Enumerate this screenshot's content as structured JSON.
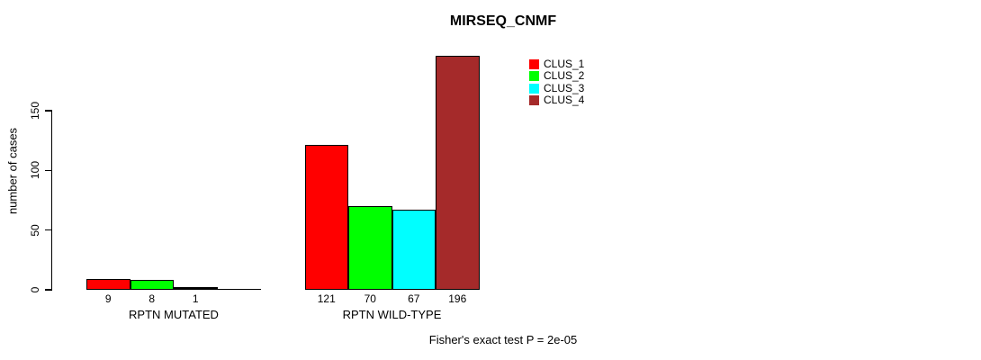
{
  "title": "MIRSEQ_CNMF",
  "chart_data": {
    "type": "bar",
    "title": "MIRSEQ_CNMF",
    "ylabel": "number of cases",
    "yticks": [
      0,
      50,
      100,
      150
    ],
    "ylim": [
      0,
      196
    ],
    "grid": false,
    "legend_position": "top-right",
    "categories": [
      "RPTN MUTATED",
      "RPTN WILD-TYPE"
    ],
    "series": [
      {
        "name": "CLUS_1",
        "color": "#ff0000",
        "values": [
          9,
          121
        ]
      },
      {
        "name": "CLUS_2",
        "color": "#00ff00",
        "values": [
          8,
          70
        ]
      },
      {
        "name": "CLUS_3",
        "color": "#00ffff",
        "values": [
          1,
          67
        ]
      },
      {
        "name": "CLUS_4",
        "color": "#a52a2a",
        "values": [
          0,
          196
        ]
      }
    ],
    "bar_value_labels": [
      [
        "9",
        "8",
        "1",
        ""
      ],
      [
        "121",
        "70",
        "67",
        "196"
      ]
    ],
    "annotation": "Fisher's exact test P = 2e-05",
    "axis_color": "#000000",
    "bar_border_color": "#000000"
  }
}
